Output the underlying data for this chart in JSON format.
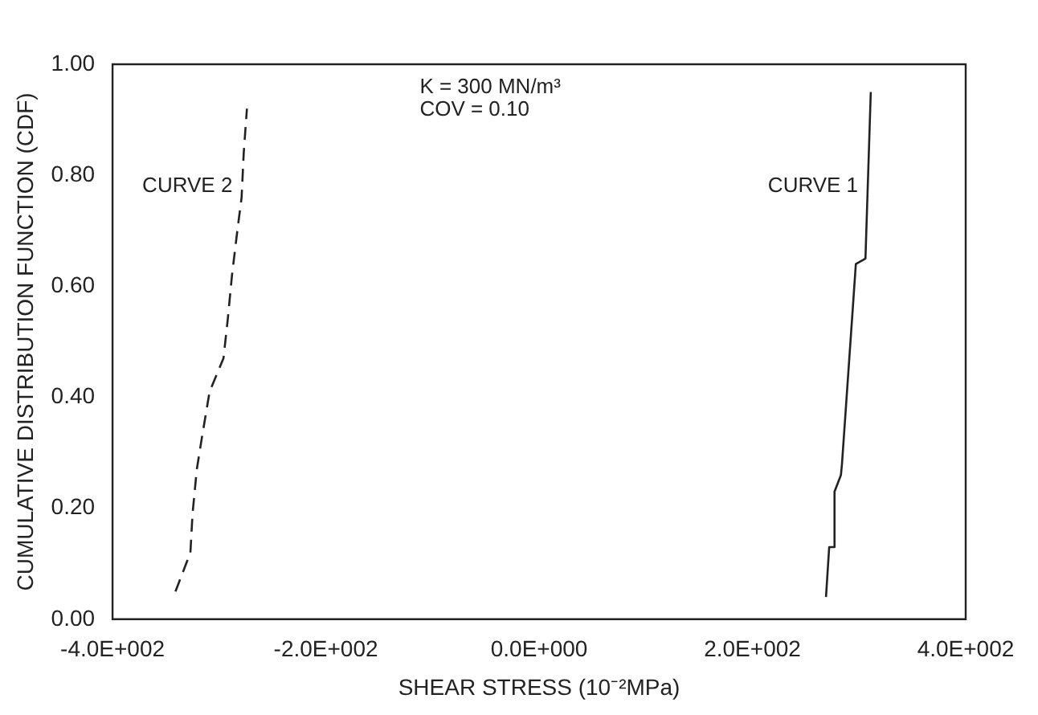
{
  "chart_data": {
    "type": "line",
    "xlabel": "SHEAR STRESS (10⁻²MPa)",
    "ylabel": "CUMULATIVE DISTRIBUTION FUNCTION (CDF)",
    "annotations": [
      "K = 300 MN/m³",
      "COV = 0.10"
    ],
    "xlim": [
      -400,
      400
    ],
    "xticks": [
      {
        "value": -400,
        "label": "-4.0E+002"
      },
      {
        "value": -200,
        "label": "-2.0E+002"
      },
      {
        "value": 0,
        "label": "0.0E+000"
      },
      {
        "value": 200,
        "label": "2.0E+002"
      },
      {
        "value": 400,
        "label": "4.0E+002"
      }
    ],
    "ylim": [
      0,
      1
    ],
    "yticks": [
      {
        "value": 0,
        "label": "0.00"
      },
      {
        "value": 0.2,
        "label": "0.20"
      },
      {
        "value": 0.4,
        "label": "0.40"
      },
      {
        "value": 0.6,
        "label": "0.60"
      },
      {
        "value": 0.8,
        "label": "0.80"
      },
      {
        "value": 1,
        "label": "1.00"
      }
    ],
    "grid": false,
    "legend": false,
    "marker": "none",
    "series": [
      {
        "name": "CURVE 2",
        "color": "#222222",
        "line_style": "dashed",
        "x": [
          -341,
          -327,
          -325,
          -321,
          -316,
          -309,
          -296,
          -292,
          -288,
          -283,
          -279,
          -277,
          -274
        ],
        "values": [
          0.05,
          0.12,
          0.19,
          0.27,
          0.33,
          0.41,
          0.47,
          0.54,
          0.62,
          0.7,
          0.76,
          0.84,
          0.92
        ]
      },
      {
        "name": "CURVE 1",
        "color": "#222222",
        "line_style": "solid",
        "x": [
          269,
          272,
          277,
          277,
          283,
          284,
          297,
          306,
          311
        ],
        "values": [
          0.04,
          0.13,
          0.13,
          0.23,
          0.26,
          0.28,
          0.64,
          0.65,
          0.95
        ]
      }
    ]
  }
}
